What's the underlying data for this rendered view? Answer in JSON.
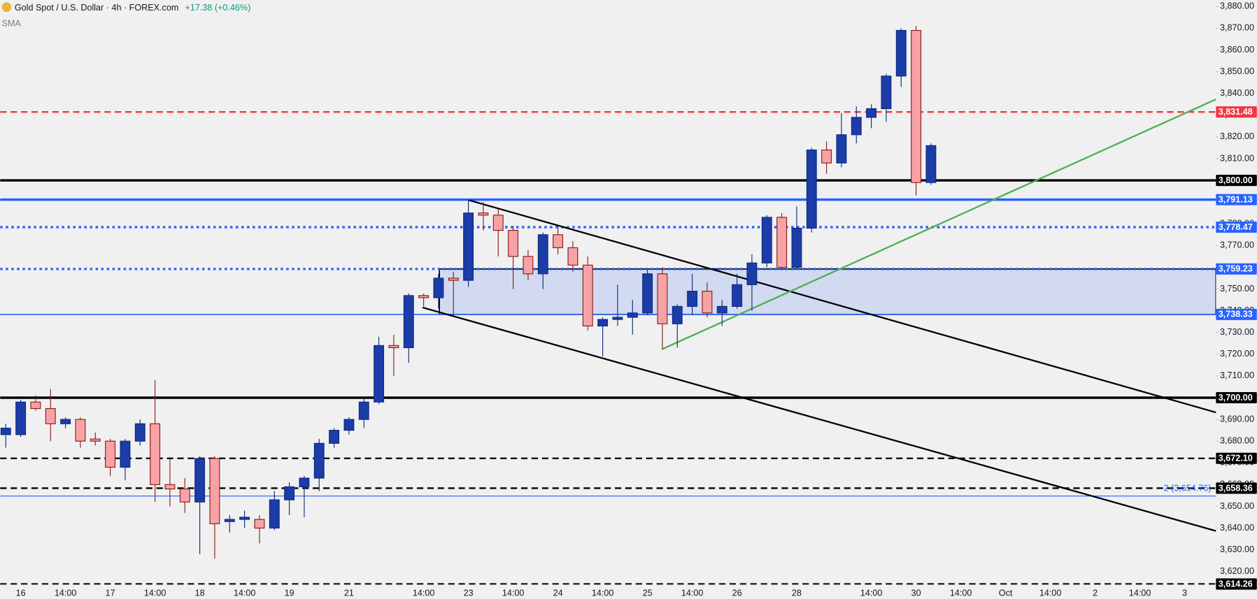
{
  "chart_data": {
    "type": "candlestick",
    "title": "Gold Spot / U.S. Dollar · 4h · FOREX.com",
    "change": "+17.38 (+0.46%)",
    "indicator": "SMA",
    "up_color": "#1c3ca8",
    "down_color": "#f7a3a6",
    "categories": [
      null,
      "16",
      null,
      null,
      "14:00",
      null,
      null,
      "17",
      null,
      null,
      "14:00",
      null,
      null,
      "18",
      null,
      null,
      "14:00",
      null,
      null,
      "19",
      null,
      null,
      null,
      "21",
      null,
      null,
      null,
      null,
      "14:00",
      null,
      null,
      "23",
      null,
      null,
      "14:00",
      null,
      null,
      "24",
      null,
      null,
      "14:00",
      null,
      null,
      "25",
      null,
      null,
      "14:00",
      null,
      null,
      "26",
      null,
      null,
      null,
      "28",
      null,
      null,
      null,
      null,
      "14:00",
      null,
      null,
      "30",
      null,
      null,
      "14:00",
      null,
      null,
      "Oct",
      null,
      null,
      "14:00",
      null,
      null,
      "2",
      null,
      null,
      "14:00",
      null,
      null,
      "3",
      null
    ],
    "open": [
      3683,
      3683,
      3698,
      3695,
      3688,
      3690,
      3681,
      3680,
      3668,
      3680,
      3688,
      3660,
      3658,
      3652,
      3672,
      3643,
      3644,
      3644,
      3640,
      3653,
      3659,
      3663,
      3679,
      3685,
      3690,
      3698,
      3724,
      3723,
      3747,
      3746,
      3755,
      3754,
      3785,
      3784,
      3777,
      3765,
      3757,
      3775,
      3769,
      3761,
      3733,
      3736,
      3737,
      3739,
      3757,
      3734,
      3742,
      3749,
      3739,
      3742,
      3752,
      3762,
      3783,
      3760,
      3778,
      3814,
      3808,
      3821,
      3829,
      3833,
      3848,
      3869,
      3799,
      null,
      null,
      null,
      null,
      null,
      null,
      null,
      null,
      null,
      null,
      null,
      null,
      null,
      null,
      null,
      null,
      null,
      null
    ],
    "high": [
      3688,
      3699,
      3701,
      3704,
      3691,
      3691,
      3684,
      3681,
      3681,
      3690,
      3708,
      3672,
      3663,
      3673,
      3673,
      3646,
      3648,
      3646,
      3657,
      3661,
      3664,
      3681,
      3686,
      3691,
      3700,
      3728,
      3729,
      3748,
      3748,
      3757,
      3758,
      3791,
      3790,
      3787,
      3779,
      3768,
      3776,
      3779,
      3772,
      3765,
      3737,
      3752,
      3745,
      3759,
      3760,
      3743,
      3757,
      3753,
      3745,
      3757,
      3766,
      3784,
      3785,
      3788,
      3815,
      3818,
      3831,
      3834,
      3835,
      3849,
      3870,
      3871,
      3817,
      null,
      null,
      null,
      null,
      null,
      null,
      null,
      null,
      null,
      null,
      null,
      null,
      null,
      null,
      null,
      null,
      null,
      null
    ],
    "low": [
      3677,
      3682,
      3694,
      3680,
      3686,
      3677,
      3678,
      3664,
      3662,
      3678,
      3652,
      3650,
      3647,
      3628,
      3626,
      3638,
      3640,
      3633,
      3639,
      3646,
      3645,
      3657,
      3677,
      3683,
      3686,
      3697,
      3710,
      3716,
      3742,
      3741,
      3738,
      3751,
      3777,
      3765,
      3750,
      3754,
      3750,
      3766,
      3758,
      3731,
      3719,
      3733,
      3729,
      3738,
      3722,
      3723,
      3738,
      3737,
      3733,
      3741,
      3740,
      3760,
      3759,
      3759,
      3776,
      3803,
      3806,
      3817,
      3824,
      3827,
      3843,
      3793,
      3798,
      null,
      null,
      null,
      null,
      null,
      null,
      null,
      null,
      null,
      null,
      null,
      null,
      null,
      null,
      null,
      null,
      null,
      null
    ],
    "close": [
      3686,
      3698,
      3695,
      3688,
      3690,
      3680,
      3680,
      3668,
      3680,
      3688,
      3660,
      3658,
      3652,
      3672,
      3642,
      3644,
      3645,
      3640,
      3653,
      3659,
      3663,
      3679,
      3685,
      3690,
      3698,
      3724,
      3723,
      3747,
      3746,
      3755,
      3754,
      3785,
      3784,
      3777,
      3765,
      3757,
      3775,
      3769,
      3761,
      3733,
      3736,
      3737,
      3739,
      3757,
      3734,
      3742,
      3749,
      3739,
      3742,
      3752,
      3762,
      3783,
      3760,
      3778,
      3814,
      3808,
      3821,
      3829,
      3833,
      3848,
      3869,
      3799,
      3816,
      null,
      null,
      null,
      null,
      null,
      null,
      null,
      null,
      null,
      null,
      null,
      null,
      null,
      null,
      null,
      null,
      null,
      null
    ],
    "ylim": [
      3614,
      3883
    ],
    "yticks": [
      {
        "value": 3620,
        "label": "3,620.00"
      },
      {
        "value": 3630,
        "label": "3,630.00"
      },
      {
        "value": 3640,
        "label": "3,640.00"
      },
      {
        "value": 3650,
        "label": "3,650.00"
      },
      {
        "value": 3660,
        "label": "3,660.00"
      },
      {
        "value": 3670,
        "label": "3,670.00"
      },
      {
        "value": 3680,
        "label": "3,680.00"
      },
      {
        "value": 3690,
        "label": "3,690.00"
      },
      {
        "value": 3700,
        "label": "3,700.00"
      },
      {
        "value": 3710,
        "label": "3,710.00"
      },
      {
        "value": 3720,
        "label": "3,720.00"
      },
      {
        "value": 3730,
        "label": "3,730.00"
      },
      {
        "value": 3740,
        "label": "3,740.00"
      },
      {
        "value": 3750,
        "label": "3,750.00"
      },
      {
        "value": 3760,
        "label": "3,760.00"
      },
      {
        "value": 3770,
        "label": "3,770.00"
      },
      {
        "value": 3780,
        "label": "3,780.00"
      },
      {
        "value": 3790,
        "label": "3,790.00"
      },
      {
        "value": 3800,
        "label": "3,800.00"
      },
      {
        "value": 3810,
        "label": "3,810.00"
      },
      {
        "value": 3820,
        "label": "3,820.00"
      },
      {
        "value": 3830,
        "label": "3,830.00"
      },
      {
        "value": 3840,
        "label": "3,840.00"
      },
      {
        "value": 3850,
        "label": "3,850.00"
      },
      {
        "value": 3860,
        "label": "3,860.00"
      },
      {
        "value": 3870,
        "label": "3,870.00"
      },
      {
        "value": 3880,
        "label": "3,880.00"
      }
    ],
    "levels": [
      {
        "value": 3831.48,
        "label": "3,831.48",
        "color": "#f23645",
        "style": "dashed"
      },
      {
        "value": 3800,
        "label": "3,800.00",
        "color": "#000000",
        "style": "thick"
      },
      {
        "value": 3791.13,
        "label": "3,791.13",
        "color": "#2962ff",
        "style": "thick"
      },
      {
        "value": 3778.47,
        "label": "3,778.47",
        "color": "#2962ff",
        "style": "dotted"
      },
      {
        "value": 3759.23,
        "label": "3,759.23",
        "color": "#2962ff",
        "style": "dotted"
      },
      {
        "value": 3738.33,
        "label": "3,738.33",
        "color": "#2962ff",
        "style": "solid"
      },
      {
        "value": 3700,
        "label": "3,700.00",
        "color": "#000000",
        "style": "thick"
      },
      {
        "value": 3672.1,
        "label": "3,672.10",
        "color": "#000000",
        "style": "dashed"
      },
      {
        "value": 3658.36,
        "label": "3,658.36",
        "color": "#000000",
        "style": "dashed"
      },
      {
        "value": 3654.76,
        "label": "2 (3,654.76)",
        "color": "#2962ff",
        "style": "fib"
      },
      {
        "value": 3614.26,
        "label": "3,614.26",
        "color": "#000000",
        "style": "dashed"
      }
    ]
  }
}
